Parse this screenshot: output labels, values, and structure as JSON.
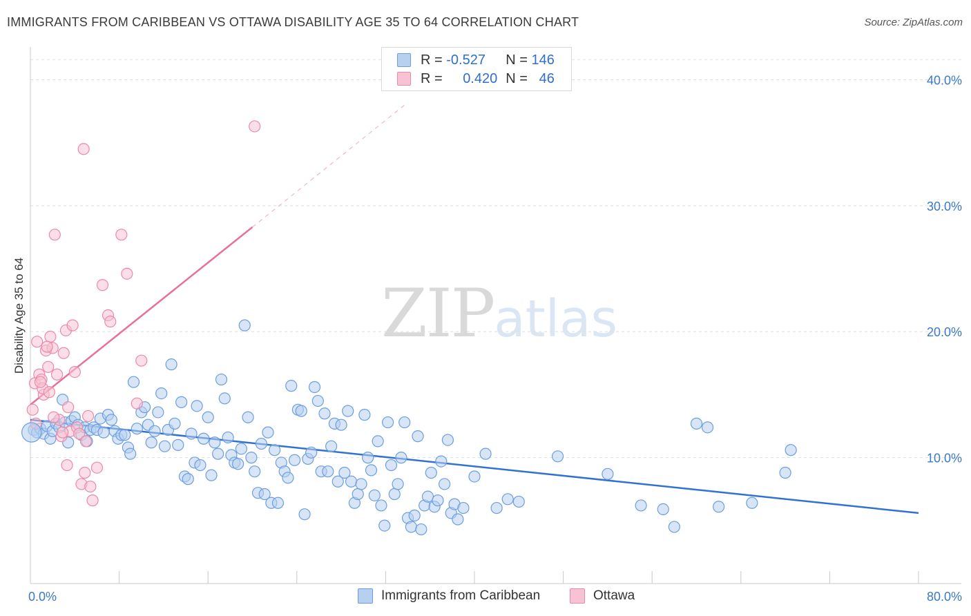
{
  "header": {
    "title": "IMMIGRANTS FROM CARIBBEAN VS OTTAWA DISABILITY AGE 35 TO 64 CORRELATION CHART",
    "source": "Source: ZipAtlas.com"
  },
  "watermark": {
    "zip": "ZIP",
    "atlas": "atlas"
  },
  "legend": {
    "r_label": "R =",
    "n_label": "N =",
    "series1": {
      "r": "-0.527",
      "n": "146"
    },
    "series2": {
      "r": "0.420",
      "n": "46"
    }
  },
  "colors": {
    "blue_fill": "#b7d0f0",
    "blue_stroke": "#6b9ee0",
    "blue_line": "#2f72d1",
    "pink_fill": "#f7c3d4",
    "pink_stroke": "#ea8aa8",
    "pink_line": "#e8709a",
    "axis_text": "#3a78c9"
  },
  "chart_data": {
    "type": "scatter",
    "title": "IMMIGRANTS FROM CARIBBEAN VS OTTAWA DISABILITY AGE 35 TO 64 CORRELATION CHART",
    "ylabel": "Disability Age 35 to 64",
    "xlabel": "",
    "xlim": [
      0,
      80
    ],
    "ylim": [
      0,
      42
    ],
    "x_tick_labels": [
      "0.0%",
      "80.0%"
    ],
    "y_ticks": [
      10,
      20,
      30,
      40
    ],
    "y_tick_labels": [
      "10.0%",
      "20.0%",
      "30.0%",
      "40.0%"
    ],
    "grid": true,
    "legend_position": "top-center",
    "series": [
      {
        "name": "Immigrants from Caribbean",
        "r": -0.527,
        "n": 146,
        "trend": {
          "x": [
            0,
            80
          ],
          "y": [
            13.0,
            5.6
          ]
        },
        "points": [
          [
            0.3,
            12.2
          ],
          [
            0.6,
            12.0
          ],
          [
            0.9,
            12.3
          ],
          [
            1.2,
            11.9
          ],
          [
            1.5,
            12.5
          ],
          [
            1.8,
            11.5
          ],
          [
            2.0,
            12.1
          ],
          [
            2.3,
            12.7
          ],
          [
            2.6,
            12.4
          ],
          [
            2.9,
            14.6
          ],
          [
            3.1,
            12.8
          ],
          [
            3.4,
            11.2
          ],
          [
            3.7,
            12.9
          ],
          [
            4.0,
            13.2
          ],
          [
            4.3,
            12.6
          ],
          [
            4.6,
            11.8
          ],
          [
            4.9,
            12.4
          ],
          [
            5.1,
            11.3
          ],
          [
            5.4,
            12.2
          ],
          [
            5.7,
            12.4
          ],
          [
            6.0,
            12.2
          ],
          [
            6.3,
            13.1
          ],
          [
            6.6,
            12.0
          ],
          [
            7.0,
            13.4
          ],
          [
            7.3,
            13.0
          ],
          [
            7.6,
            12.1
          ],
          [
            7.9,
            11.5
          ],
          [
            8.2,
            11.8
          ],
          [
            8.5,
            11.8
          ],
          [
            8.8,
            10.8
          ],
          [
            9.0,
            10.3
          ],
          [
            9.3,
            16.0
          ],
          [
            9.6,
            12.3
          ],
          [
            10.0,
            13.6
          ],
          [
            10.3,
            14.0
          ],
          [
            10.6,
            12.6
          ],
          [
            10.9,
            11.2
          ],
          [
            11.2,
            12.1
          ],
          [
            11.5,
            13.6
          ],
          [
            11.8,
            15.1
          ],
          [
            12.1,
            10.9
          ],
          [
            12.4,
            12.2
          ],
          [
            12.7,
            17.4
          ],
          [
            13.0,
            12.7
          ],
          [
            13.3,
            11.0
          ],
          [
            13.6,
            14.4
          ],
          [
            13.9,
            8.5
          ],
          [
            14.2,
            8.3
          ],
          [
            14.5,
            11.9
          ],
          [
            14.8,
            9.6
          ],
          [
            15.0,
            14.1
          ],
          [
            15.3,
            9.4
          ],
          [
            15.6,
            11.5
          ],
          [
            16.0,
            13.2
          ],
          [
            16.3,
            8.6
          ],
          [
            16.6,
            11.2
          ],
          [
            16.9,
            10.3
          ],
          [
            17.2,
            16.2
          ],
          [
            17.5,
            14.7
          ],
          [
            17.8,
            11.6
          ],
          [
            18.1,
            10.2
          ],
          [
            18.4,
            9.6
          ],
          [
            18.7,
            9.5
          ],
          [
            19.0,
            10.7
          ],
          [
            19.3,
            20.5
          ],
          [
            19.6,
            13.2
          ],
          [
            19.9,
            10.0
          ],
          [
            20.2,
            8.9
          ],
          [
            20.5,
            7.2
          ],
          [
            20.8,
            11.1
          ],
          [
            21.1,
            7.1
          ],
          [
            21.4,
            12.0
          ],
          [
            21.7,
            6.4
          ],
          [
            22.0,
            10.6
          ],
          [
            22.3,
            6.4
          ],
          [
            22.6,
            9.6
          ],
          [
            22.9,
            8.9
          ],
          [
            23.2,
            8.4
          ],
          [
            23.5,
            15.7
          ],
          [
            23.8,
            9.8
          ],
          [
            24.1,
            13.8
          ],
          [
            24.4,
            13.7
          ],
          [
            24.7,
            5.5
          ],
          [
            25.0,
            9.9
          ],
          [
            25.3,
            10.4
          ],
          [
            25.6,
            15.6
          ],
          [
            25.9,
            14.5
          ],
          [
            26.2,
            8.9
          ],
          [
            26.5,
            13.5
          ],
          [
            26.8,
            8.9
          ],
          [
            27.1,
            10.9
          ],
          [
            27.4,
            12.7
          ],
          [
            27.7,
            8.1
          ],
          [
            28.0,
            12.6
          ],
          [
            28.3,
            8.8
          ],
          [
            28.6,
            13.7
          ],
          [
            28.9,
            8.1
          ],
          [
            29.2,
            6.4
          ],
          [
            29.5,
            7.1
          ],
          [
            29.8,
            7.9
          ],
          [
            30.1,
            13.4
          ],
          [
            30.4,
            10.0
          ],
          [
            30.7,
            9.0
          ],
          [
            31.0,
            7.0
          ],
          [
            31.3,
            11.3
          ],
          [
            31.6,
            6.2
          ],
          [
            31.9,
            4.6
          ],
          [
            32.2,
            12.8
          ],
          [
            32.5,
            9.4
          ],
          [
            32.8,
            7.1
          ],
          [
            33.1,
            7.9
          ],
          [
            33.4,
            10.0
          ],
          [
            33.7,
            12.8
          ],
          [
            34.0,
            5.2
          ],
          [
            34.3,
            4.5
          ],
          [
            34.6,
            5.4
          ],
          [
            34.9,
            11.7
          ],
          [
            35.2,
            4.3
          ],
          [
            35.5,
            6.2
          ],
          [
            35.8,
            6.9
          ],
          [
            36.1,
            8.8
          ],
          [
            36.4,
            6.1
          ],
          [
            36.7,
            6.6
          ],
          [
            37.0,
            9.7
          ],
          [
            37.3,
            7.9
          ],
          [
            37.6,
            11.4
          ],
          [
            37.9,
            5.6
          ],
          [
            38.2,
            6.3
          ],
          [
            38.5,
            5.1
          ],
          [
            39.0,
            6.0
          ],
          [
            40.0,
            8.5
          ],
          [
            41.0,
            10.3
          ],
          [
            42.0,
            6.0
          ],
          [
            43.0,
            6.7
          ],
          [
            44.0,
            6.5
          ],
          [
            47.5,
            10.1
          ],
          [
            60.0,
            12.7
          ],
          [
            68.0,
            8.8
          ],
          [
            68.5,
            10.6
          ],
          [
            61.0,
            12.4
          ],
          [
            52.0,
            8.7
          ],
          [
            55.0,
            6.2
          ],
          [
            57.0,
            5.9
          ],
          [
            58.0,
            4.5
          ],
          [
            62.0,
            6.1
          ],
          [
            65.0,
            6.4
          ]
        ]
      },
      {
        "name": "Ottawa",
        "r": 0.42,
        "n": 46,
        "trend": {
          "x": [
            0,
            20
          ],
          "y": [
            14.2,
            28.3
          ]
        },
        "trend_dashed_to": {
          "x": 34,
          "y": 38.2
        },
        "points": [
          [
            0.2,
            13.8
          ],
          [
            0.4,
            15.9
          ],
          [
            0.6,
            19.2
          ],
          [
            0.8,
            16.6
          ],
          [
            1.0,
            16.2
          ],
          [
            1.2,
            15.0
          ],
          [
            1.4,
            18.5
          ],
          [
            1.6,
            17.2
          ],
          [
            1.8,
            19.6
          ],
          [
            2.0,
            18.7
          ],
          [
            2.2,
            27.7
          ],
          [
            2.4,
            16.6
          ],
          [
            2.6,
            13.0
          ],
          [
            2.8,
            11.7
          ],
          [
            3.0,
            18.3
          ],
          [
            3.2,
            20.1
          ],
          [
            3.4,
            14.0
          ],
          [
            3.6,
            12.1
          ],
          [
            3.8,
            20.5
          ],
          [
            4.0,
            16.8
          ],
          [
            4.2,
            12.4
          ],
          [
            4.4,
            11.9
          ],
          [
            4.6,
            7.9
          ],
          [
            4.8,
            34.5
          ],
          [
            5.0,
            11.3
          ],
          [
            5.2,
            13.3
          ],
          [
            5.4,
            7.7
          ],
          [
            5.6,
            6.6
          ],
          [
            6.0,
            9.2
          ],
          [
            6.5,
            23.7
          ],
          [
            7.0,
            21.3
          ],
          [
            7.2,
            20.8
          ],
          [
            8.2,
            27.7
          ],
          [
            8.7,
            24.6
          ],
          [
            9.6,
            14.3
          ],
          [
            10.0,
            17.7
          ],
          [
            20.2,
            36.3
          ],
          [
            1.1,
            15.5
          ],
          [
            2.1,
            13.2
          ],
          [
            3.3,
            9.4
          ],
          [
            0.9,
            16.0
          ],
          [
            1.7,
            15.2
          ],
          [
            4.9,
            8.8
          ],
          [
            0.5,
            12.7
          ],
          [
            1.5,
            18.8
          ],
          [
            2.9,
            12.0
          ]
        ]
      }
    ]
  },
  "bottom_legend": {
    "item1": "Immigrants from Caribbean",
    "item2": "Ottawa"
  }
}
